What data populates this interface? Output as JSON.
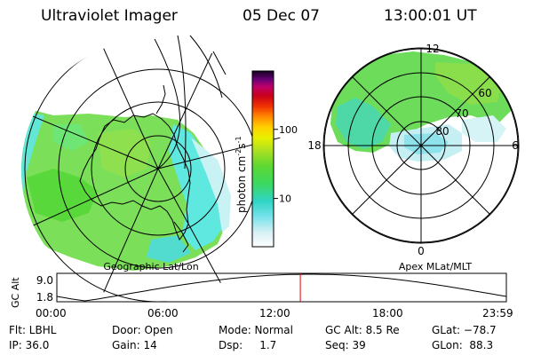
{
  "header": {
    "instrument": "Ultraviolet Imager",
    "date": "05 Dec 07",
    "time": "13:00:01 UT"
  },
  "colorbar": {
    "label": "photon cm",
    "label_exp1": "-2",
    "label_mid": "s",
    "label_exp2": "-1",
    "ticks": [
      {
        "label": "100",
        "value": 100
      },
      {
        "label": "10",
        "value": 10
      }
    ],
    "range": [
      2,
      700
    ]
  },
  "left_panel": {
    "caption": "Geographic Lat/Lon"
  },
  "right_panel": {
    "caption": "Apex MLat/MLT",
    "mlt_labels": {
      "top": "12",
      "bottom": "0",
      "left": "18",
      "right": "6"
    },
    "mlat_labels": [
      "60",
      "70",
      "80"
    ]
  },
  "altitude_plot": {
    "ylabel": "GC Alt",
    "yticks": [
      "9.0",
      "1.8"
    ],
    "xticks": [
      "00:00",
      "06:00",
      "12:00",
      "18:00",
      "23:59"
    ],
    "current_time_hours": 13.0
  },
  "info": {
    "flt": "Flt: LBHL",
    "ip": "IP: 36.0",
    "door": "Door: Open",
    "gain": "Gain: 14",
    "mode": "Mode: Normal",
    "dsp": "Dsp:     1.7",
    "gcalt": "GC Alt: 8.5 Re",
    "seq": "Seq: 39",
    "glat": "GLat: −78.7",
    "glon": "GLon:  88.3"
  }
}
